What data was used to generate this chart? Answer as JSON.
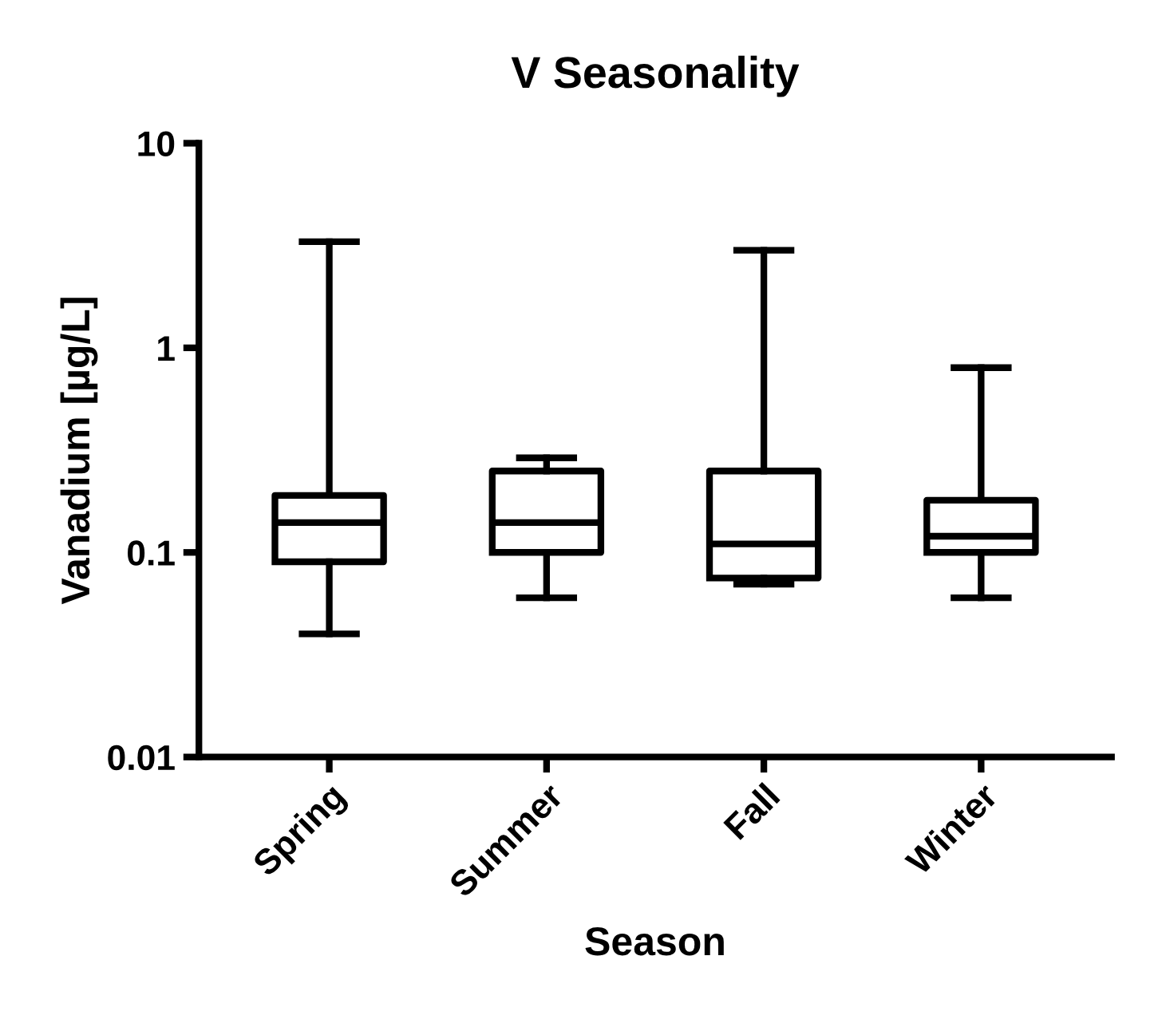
{
  "chart_data": {
    "type": "box",
    "title": "V Seasonality",
    "xlabel": "Season",
    "ylabel": "Vanadium [µg/L]",
    "categories": [
      "Spring",
      "Summer",
      "Fall",
      "Winter"
    ],
    "boxes": [
      {
        "low": 0.04,
        "q1": 0.09,
        "median": 0.14,
        "q3": 0.19,
        "high": 3.3
      },
      {
        "low": 0.06,
        "q1": 0.1,
        "median": 0.14,
        "q3": 0.25,
        "high": 0.29
      },
      {
        "low": 0.07,
        "q1": 0.075,
        "median": 0.11,
        "q3": 0.25,
        "high": 3.0
      },
      {
        "low": 0.06,
        "q1": 0.1,
        "median": 0.12,
        "q3": 0.18,
        "high": 0.8
      }
    ],
    "color": "#000000",
    "log": "y",
    "ylim": [
      0.01,
      10
    ],
    "yticks": [
      0.01,
      0.1,
      1,
      10
    ],
    "grid": false,
    "legend": false
  }
}
